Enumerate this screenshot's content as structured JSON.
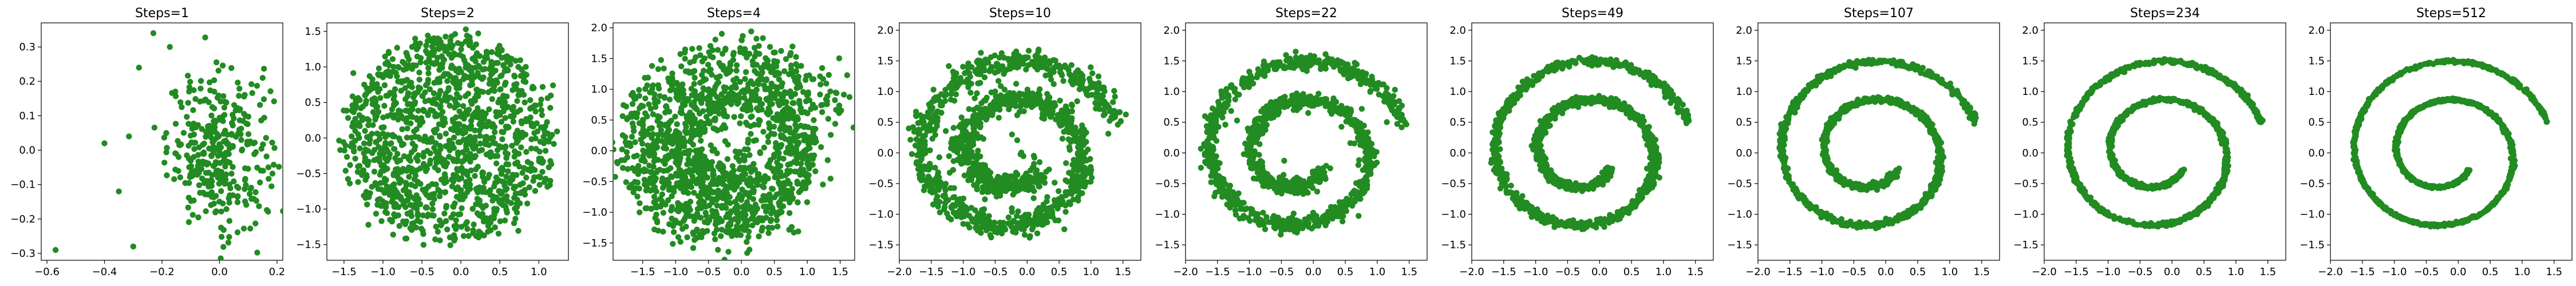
{
  "figure": {
    "point_color": "#228B22",
    "background": "#ffffff"
  },
  "chart_data": [
    {
      "type": "scatter",
      "title": "Steps=1",
      "xlim": [
        -0.62,
        0.22
      ],
      "ylim": [
        -0.32,
        0.37
      ],
      "xticks": [
        -0.6,
        -0.4,
        -0.2,
        0.0,
        0.2
      ],
      "xtick_labels": [
        "−0.6",
        "−0.4",
        "−0.2",
        "0.0",
        "0.2"
      ],
      "yticks": [
        -0.3,
        -0.2,
        -0.1,
        0.0,
        0.1,
        0.2,
        0.3
      ],
      "ytick_labels": [
        "−0.3",
        "−0.2",
        "−0.1",
        "0.0",
        "0.1",
        "0.2",
        "0.3"
      ],
      "series": [
        {
          "shape": "blob",
          "cx": 0.0,
          "cy": 0.0,
          "rx": 0.09,
          "ry": 0.11,
          "n": 340,
          "outliers": [
            [
              -0.57,
              -0.29
            ],
            [
              -0.23,
              0.34
            ],
            [
              -0.28,
              0.24
            ],
            [
              0.15,
              0.21
            ],
            [
              -0.3,
              -0.28
            ],
            [
              -0.35,
              -0.12
            ],
            [
              0.17,
              -0.05
            ],
            [
              -0.4,
              0.02
            ]
          ]
        }
      ]
    },
    {
      "type": "scatter",
      "title": "Steps=2",
      "xlim": [
        -1.72,
        1.38
      ],
      "ylim": [
        -1.72,
        1.62
      ],
      "xticks": [
        -1.5,
        -1.0,
        -0.5,
        0.0,
        0.5,
        1.0
      ],
      "xtick_labels": [
        "−1.5",
        "−1.0",
        "−0.5",
        "0.0",
        "0.5",
        "1.0"
      ],
      "yticks": [
        -1.5,
        -1.0,
        -0.5,
        0.0,
        0.5,
        1.0,
        1.5
      ],
      "ytick_labels": [
        "−1.5",
        "−1.0",
        "−0.5",
        "0.0",
        "0.5",
        "1.0",
        "1.5"
      ],
      "series": [
        {
          "shape": "disk",
          "cx": -0.15,
          "cy": 0.0,
          "rx": 1.35,
          "ry": 1.45,
          "n": 1300
        }
      ]
    },
    {
      "type": "scatter",
      "title": "Steps=4",
      "xlim": [
        -1.95,
        1.72
      ],
      "ylim": [
        -1.78,
        2.08
      ],
      "xticks": [
        -1.5,
        -1.0,
        -0.5,
        0.0,
        0.5,
        1.0,
        1.5
      ],
      "xtick_labels": [
        "−1.5",
        "−1.0",
        "−0.5",
        "0.0",
        "0.5",
        "1.0",
        "1.5"
      ],
      "yticks": [
        -1.5,
        -1.0,
        -0.5,
        0.0,
        0.5,
        1.0,
        1.5,
        2.0
      ],
      "ytick_labels": [
        "−1.5",
        "−1.0",
        "−0.5",
        "0.0",
        "0.5",
        "1.0",
        "1.5",
        "2.0"
      ],
      "series": [
        {
          "shape": "spiral",
          "noise": 0.22,
          "n": 1300,
          "fill": 220
        }
      ]
    },
    {
      "type": "scatter",
      "title": "Steps=10",
      "xlim": [
        -2.0,
        1.78
      ],
      "ylim": [
        -1.75,
        2.12
      ],
      "xticks": [
        -2.0,
        -1.5,
        -1.0,
        -0.5,
        0.0,
        0.5,
        1.0,
        1.5
      ],
      "xtick_labels": [
        "−2.0",
        "−1.5",
        "−1.0",
        "−0.5",
        "0.0",
        "0.5",
        "1.0",
        "1.5"
      ],
      "yticks": [
        -1.5,
        -1.0,
        -0.5,
        0.0,
        0.5,
        1.0,
        1.5,
        2.0
      ],
      "ytick_labels": [
        "−1.5",
        "−1.0",
        "−0.5",
        "0.0",
        "0.5",
        "1.0",
        "1.5",
        "2.0"
      ],
      "series": [
        {
          "shape": "spiral",
          "noise": 0.1,
          "n": 1300,
          "fill": 40
        }
      ]
    },
    {
      "type": "scatter",
      "title": "Steps=22",
      "xlim": [
        -2.0,
        1.78
      ],
      "ylim": [
        -1.75,
        2.12
      ],
      "xticks": [
        -2.0,
        -1.5,
        -1.0,
        -0.5,
        0.0,
        0.5,
        1.0,
        1.5
      ],
      "xtick_labels": [
        "−2.0",
        "−1.5",
        "−1.0",
        "−0.5",
        "0.0",
        "0.5",
        "1.0",
        "1.5"
      ],
      "yticks": [
        -1.5,
        -1.0,
        -0.5,
        0.0,
        0.5,
        1.0,
        1.5,
        2.0
      ],
      "ytick_labels": [
        "−1.5",
        "−1.0",
        "−0.5",
        "0.0",
        "0.5",
        "1.0",
        "1.5",
        "2.0"
      ],
      "series": [
        {
          "shape": "spiral",
          "noise": 0.06,
          "n": 1300,
          "fill": 10
        }
      ]
    },
    {
      "type": "scatter",
      "title": "Steps=49",
      "xlim": [
        -2.0,
        1.78
      ],
      "ylim": [
        -1.75,
        2.12
      ],
      "xticks": [
        -2.0,
        -1.5,
        -1.0,
        -0.5,
        0.0,
        0.5,
        1.0,
        1.5
      ],
      "xtick_labels": [
        "−2.0",
        "−1.5",
        "−1.0",
        "−0.5",
        "0.0",
        "0.5",
        "1.0",
        "1.5"
      ],
      "yticks": [
        -1.5,
        -1.0,
        -0.5,
        0.0,
        0.5,
        1.0,
        1.5,
        2.0
      ],
      "ytick_labels": [
        "−1.5",
        "−1.0",
        "−0.5",
        "0.0",
        "0.5",
        "1.0",
        "1.5",
        "2.0"
      ],
      "series": [
        {
          "shape": "spiral",
          "noise": 0.035,
          "n": 1300,
          "fill": 0
        }
      ]
    },
    {
      "type": "scatter",
      "title": "Steps=107",
      "xlim": [
        -2.0,
        1.78
      ],
      "ylim": [
        -1.75,
        2.12
      ],
      "xticks": [
        -2.0,
        -1.5,
        -1.0,
        -0.5,
        0.0,
        0.5,
        1.0,
        1.5
      ],
      "xtick_labels": [
        "−2.0",
        "−1.5",
        "−1.0",
        "−0.5",
        "0.0",
        "0.5",
        "1.0",
        "1.5"
      ],
      "yticks": [
        -1.5,
        -1.0,
        -0.5,
        0.0,
        0.5,
        1.0,
        1.5,
        2.0
      ],
      "ytick_labels": [
        "−1.5",
        "−1.0",
        "−0.5",
        "0.0",
        "0.5",
        "1.0",
        "1.5",
        "2.0"
      ],
      "series": [
        {
          "shape": "spiral",
          "noise": 0.022,
          "n": 1300,
          "fill": 0
        }
      ]
    },
    {
      "type": "scatter",
      "title": "Steps=234",
      "xlim": [
        -2.0,
        1.78
      ],
      "ylim": [
        -1.75,
        2.12
      ],
      "xticks": [
        -2.0,
        -1.5,
        -1.0,
        -0.5,
        0.0,
        0.5,
        1.0,
        1.5
      ],
      "xtick_labels": [
        "−2.0",
        "−1.5",
        "−1.0",
        "−0.5",
        "0.0",
        "0.5",
        "1.0",
        "1.5"
      ],
      "yticks": [
        -1.5,
        -1.0,
        -0.5,
        0.0,
        0.5,
        1.0,
        1.5,
        2.0
      ],
      "ytick_labels": [
        "−1.5",
        "−1.0",
        "−0.5",
        "0.0",
        "0.5",
        "1.0",
        "1.5",
        "2.0"
      ],
      "series": [
        {
          "shape": "spiral",
          "noise": 0.015,
          "n": 1300,
          "fill": 0
        }
      ]
    },
    {
      "type": "scatter",
      "title": "Steps=512",
      "xlim": [
        -2.0,
        1.78
      ],
      "ylim": [
        -1.75,
        2.12
      ],
      "xticks": [
        -2.0,
        -1.5,
        -1.0,
        -0.5,
        0.0,
        0.5,
        1.0,
        1.5
      ],
      "xtick_labels": [
        "−2.0",
        "−1.5",
        "−1.0",
        "−0.5",
        "0.0",
        "0.5",
        "1.0",
        "1.5"
      ],
      "yticks": [
        -1.5,
        -1.0,
        -0.5,
        0.0,
        0.5,
        1.0,
        1.5,
        2.0
      ],
      "ytick_labels": [
        "−1.5",
        "−1.0",
        "−0.5",
        "0.0",
        "0.5",
        "1.0",
        "1.5",
        "2.0"
      ],
      "series": [
        {
          "shape": "spiral",
          "noise": 0.01,
          "n": 1300,
          "fill": 0
        }
      ]
    }
  ]
}
